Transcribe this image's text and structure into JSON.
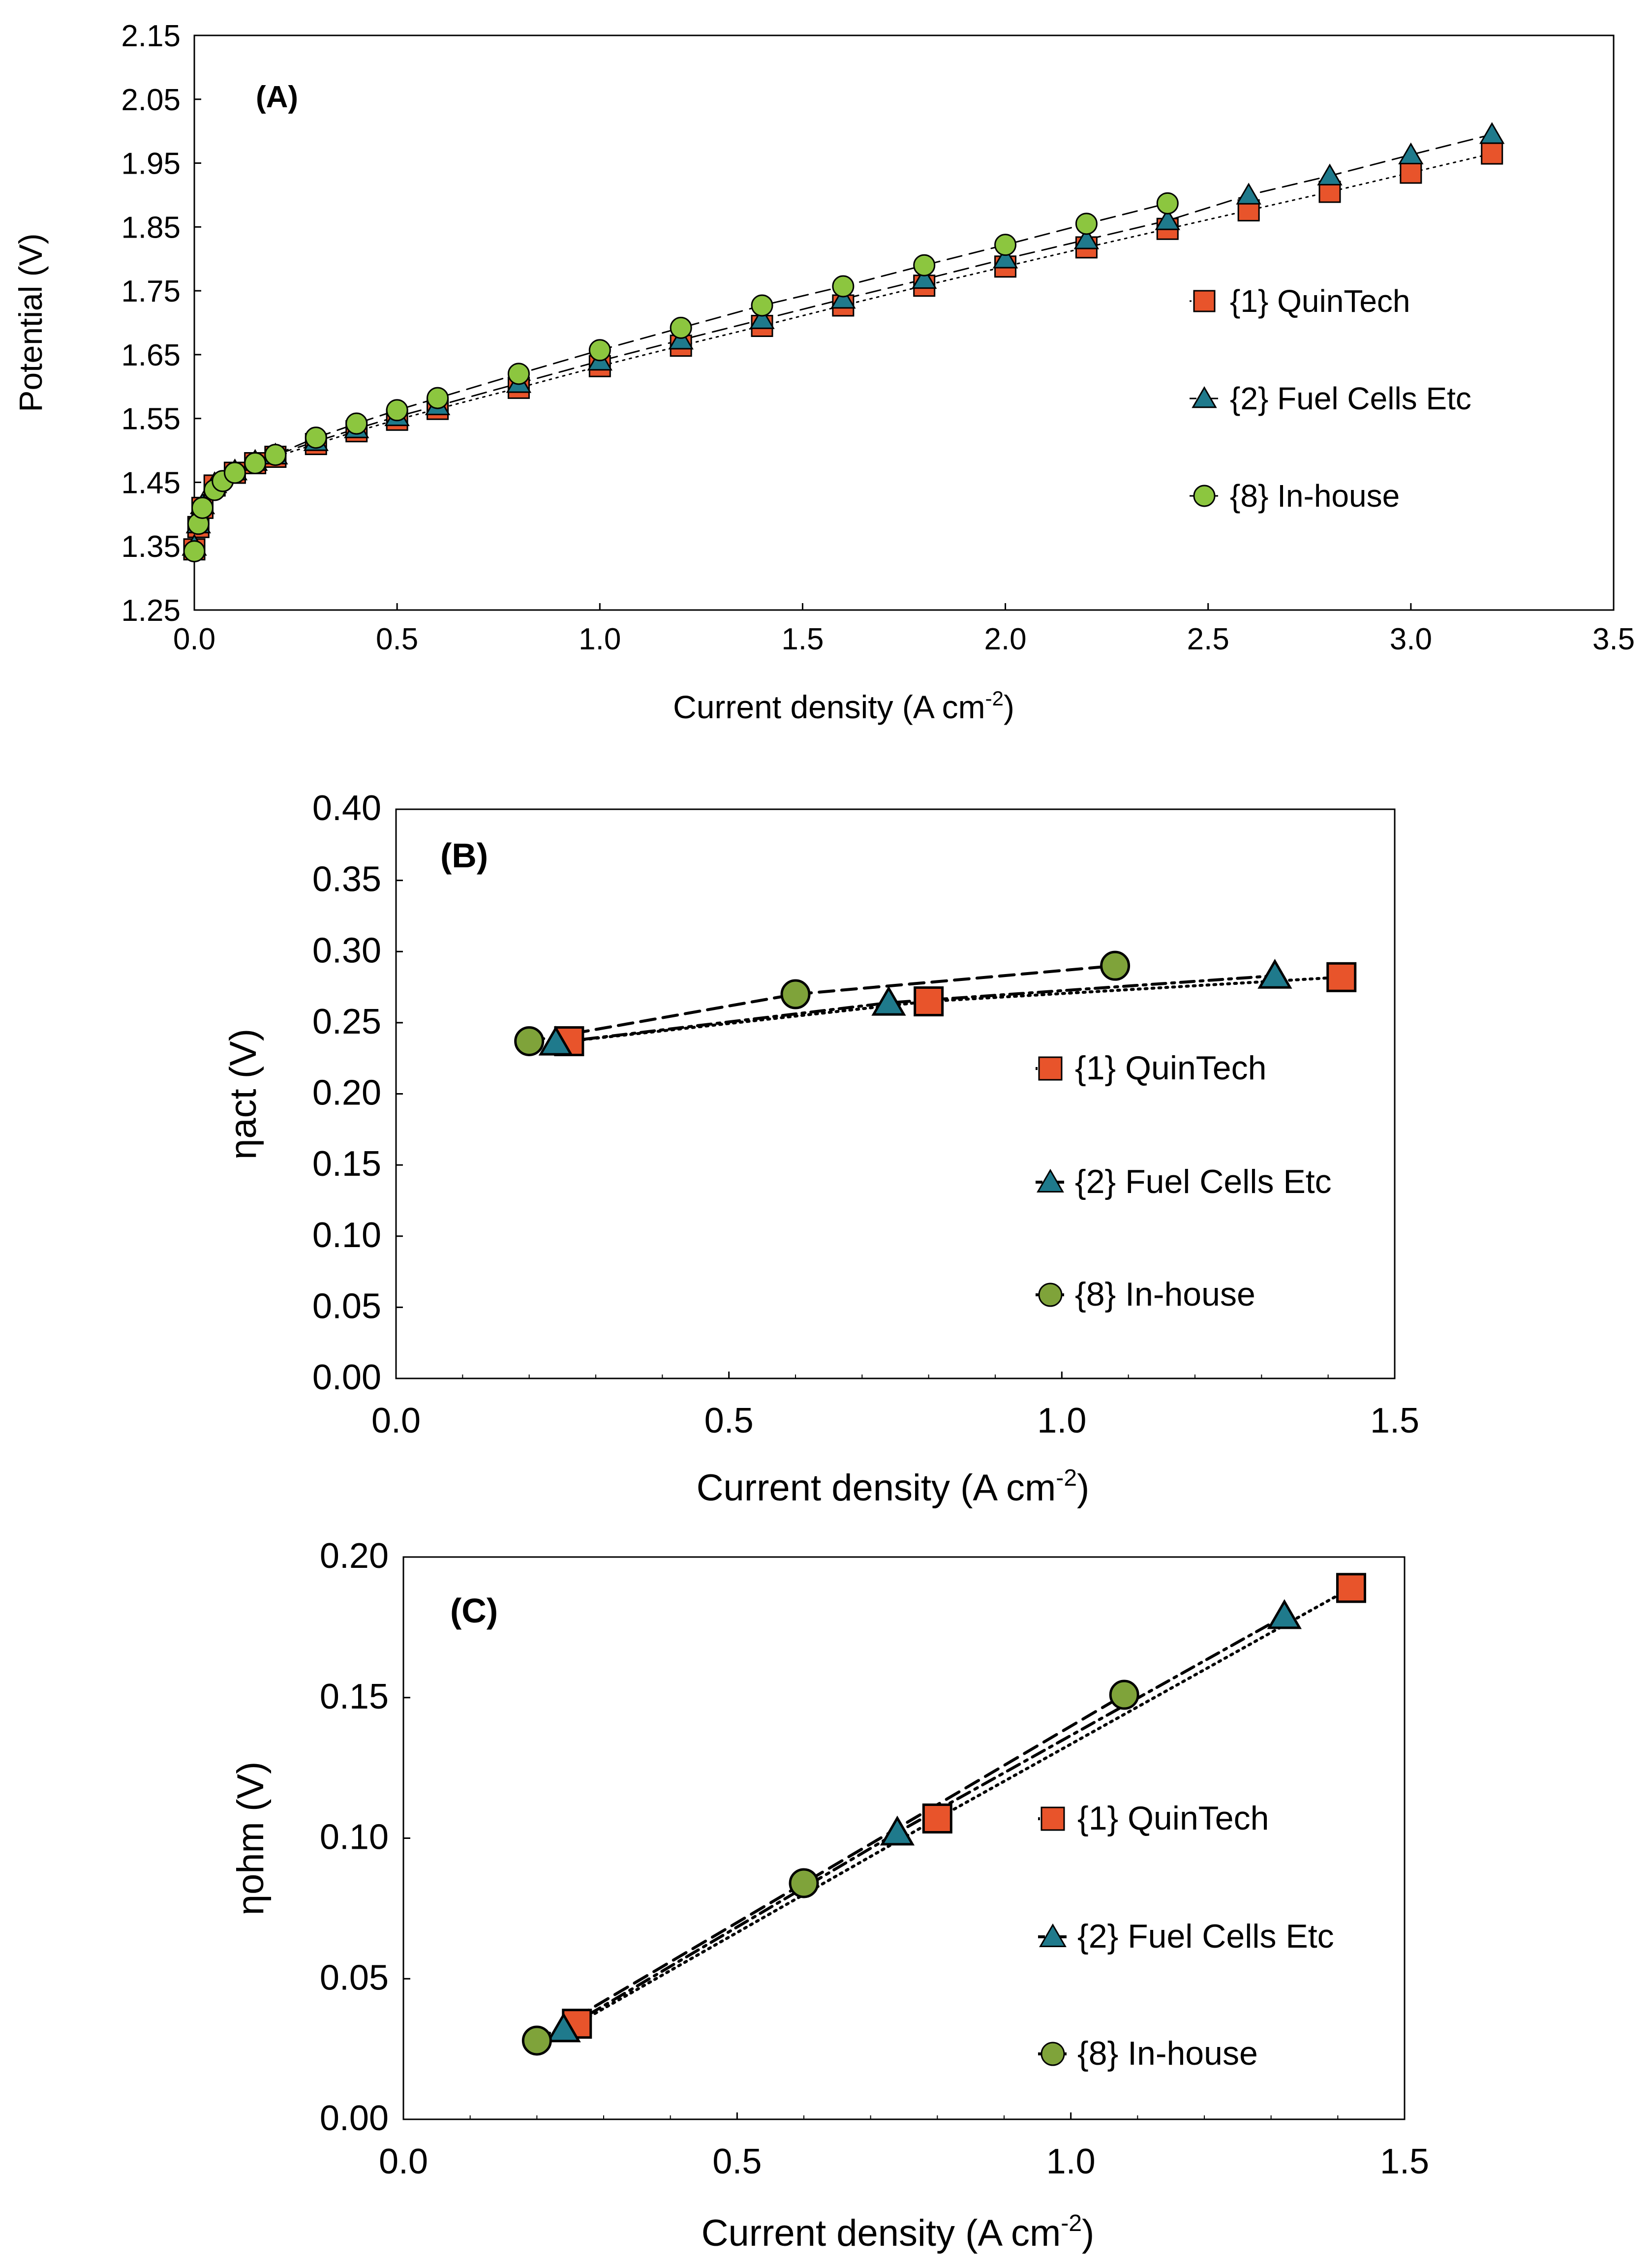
{
  "colors": {
    "quintech": "#E8542B",
    "fuelcells": "#1F7A8C",
    "inhouse_a": "#8CC63F",
    "inhouse_bc": "#7FA33A",
    "frame": "#000000"
  },
  "chart_data": [
    {
      "type": "scatter",
      "panel_label": "(A)",
      "xlabel_main": "Current density (A cm",
      "xlabel_sup": "-2",
      "xlabel_end": ")",
      "ylabel": "Potential (V)",
      "xlim": [
        0,
        3.5
      ],
      "ylim": [
        1.25,
        2.15
      ],
      "x_ticks": [
        "0.0",
        "0.5",
        "1.0",
        "1.5",
        "2.0",
        "2.5",
        "3.0",
        "3.5"
      ],
      "y_ticks": [
        "1.25",
        "1.35",
        "1.45",
        "1.55",
        "1.65",
        "1.75",
        "1.85",
        "1.95",
        "2.05",
        "2.15"
      ],
      "legend_position": "right",
      "series": [
        {
          "name": "{1} QuinTech",
          "marker": "square",
          "line": "dotted",
          "x": [
            0,
            0.01,
            0.02,
            0.05,
            0.1,
            0.15,
            0.2,
            0.3,
            0.4,
            0.5,
            0.6,
            0.8,
            1.0,
            1.2,
            1.4,
            1.6,
            1.8,
            2.0,
            2.2,
            2.4,
            2.6,
            2.8,
            3.0,
            3.2
          ],
          "y": [
            1.345,
            1.38,
            1.41,
            1.445,
            1.465,
            1.48,
            1.49,
            1.51,
            1.53,
            1.548,
            1.565,
            1.598,
            1.632,
            1.664,
            1.695,
            1.727,
            1.758,
            1.788,
            1.818,
            1.847,
            1.876,
            1.905,
            1.935,
            1.965
          ]
        },
        {
          "name": "{2} Fuel Cells Etc",
          "marker": "triangle",
          "line": "dashed",
          "x": [
            0,
            0.01,
            0.02,
            0.05,
            0.1,
            0.15,
            0.2,
            0.3,
            0.4,
            0.5,
            0.6,
            0.8,
            1.0,
            1.2,
            1.4,
            1.6,
            1.8,
            2.0,
            2.2,
            2.4,
            2.6,
            2.8,
            3.0,
            3.2
          ],
          "y": [
            1.35,
            1.385,
            1.415,
            1.448,
            1.468,
            1.483,
            1.493,
            1.514,
            1.534,
            1.553,
            1.57,
            1.605,
            1.64,
            1.673,
            1.705,
            1.737,
            1.768,
            1.8,
            1.83,
            1.86,
            1.9,
            1.93,
            1.963,
            1.995
          ]
        },
        {
          "name": "{8} In-house",
          "marker": "circle",
          "line": "dashed",
          "x": [
            0,
            0.01,
            0.02,
            0.05,
            0.07,
            0.1,
            0.15,
            0.2,
            0.3,
            0.4,
            0.5,
            0.6,
            0.8,
            1.0,
            1.2,
            1.4,
            1.6,
            1.8,
            2.0,
            2.2,
            2.4
          ],
          "y": [
            1.342,
            1.385,
            1.41,
            1.438,
            1.452,
            1.465,
            1.48,
            1.493,
            1.52,
            1.542,
            1.563,
            1.582,
            1.62,
            1.657,
            1.692,
            1.727,
            1.757,
            1.79,
            1.822,
            1.855,
            1.887
          ]
        }
      ]
    },
    {
      "type": "scatter",
      "panel_label": "(B)",
      "xlabel_main": "Current density (A cm",
      "xlabel_sup": "-2",
      "xlabel_end": ")",
      "ylabel": "ηact (V)",
      "xlim": [
        0,
        1.5
      ],
      "ylim": [
        0,
        0.4
      ],
      "x_ticks": [
        "0.0",
        "0.5",
        "1.0",
        "1.5"
      ],
      "y_ticks": [
        "0.00",
        "0.05",
        "0.10",
        "0.15",
        "0.20",
        "0.25",
        "0.30",
        "0.35",
        "0.40"
      ],
      "legend_position": "right",
      "series": [
        {
          "name": "{1} QuinTech",
          "marker": "square",
          "line": "dotted",
          "x": [
            0.26,
            0.8,
            1.42
          ],
          "y": [
            0.237,
            0.265,
            0.282
          ]
        },
        {
          "name": "{2} Fuel Cells Etc",
          "marker": "triangle",
          "line": "dashdot",
          "x": [
            0.24,
            0.74,
            1.32
          ],
          "y": [
            0.236,
            0.264,
            0.283
          ]
        },
        {
          "name": "{8} In-house",
          "marker": "circle",
          "line": "dashed",
          "x": [
            0.2,
            0.6,
            1.08
          ],
          "y": [
            0.237,
            0.27,
            0.29
          ]
        }
      ]
    },
    {
      "type": "scatter",
      "panel_label": "(C)",
      "xlabel_main": "Current density (A cm",
      "xlabel_sup": "-2",
      "xlabel_end": ")",
      "ylabel": "ηohm (V)",
      "xlim": [
        0,
        1.5
      ],
      "ylim": [
        0,
        0.2
      ],
      "x_ticks": [
        "0.0",
        "0.5",
        "1.0",
        "1.5"
      ],
      "y_ticks": [
        "0.00",
        "0.05",
        "0.10",
        "0.15",
        "0.20"
      ],
      "legend_position": "right",
      "series": [
        {
          "name": "{1} QuinTech",
          "marker": "square",
          "line": "dotted",
          "x": [
            0.26,
            0.8,
            1.42
          ],
          "y": [
            0.034,
            0.107,
            0.189
          ]
        },
        {
          "name": "{2} Fuel Cells Etc",
          "marker": "triangle",
          "line": "dashdot",
          "x": [
            0.24,
            0.74,
            1.32
          ],
          "y": [
            0.032,
            0.102,
            0.179
          ]
        },
        {
          "name": "{8} In-house",
          "marker": "circle",
          "line": "dashed",
          "x": [
            0.2,
            0.6,
            1.08
          ],
          "y": [
            0.028,
            0.084,
            0.151
          ]
        }
      ]
    }
  ]
}
